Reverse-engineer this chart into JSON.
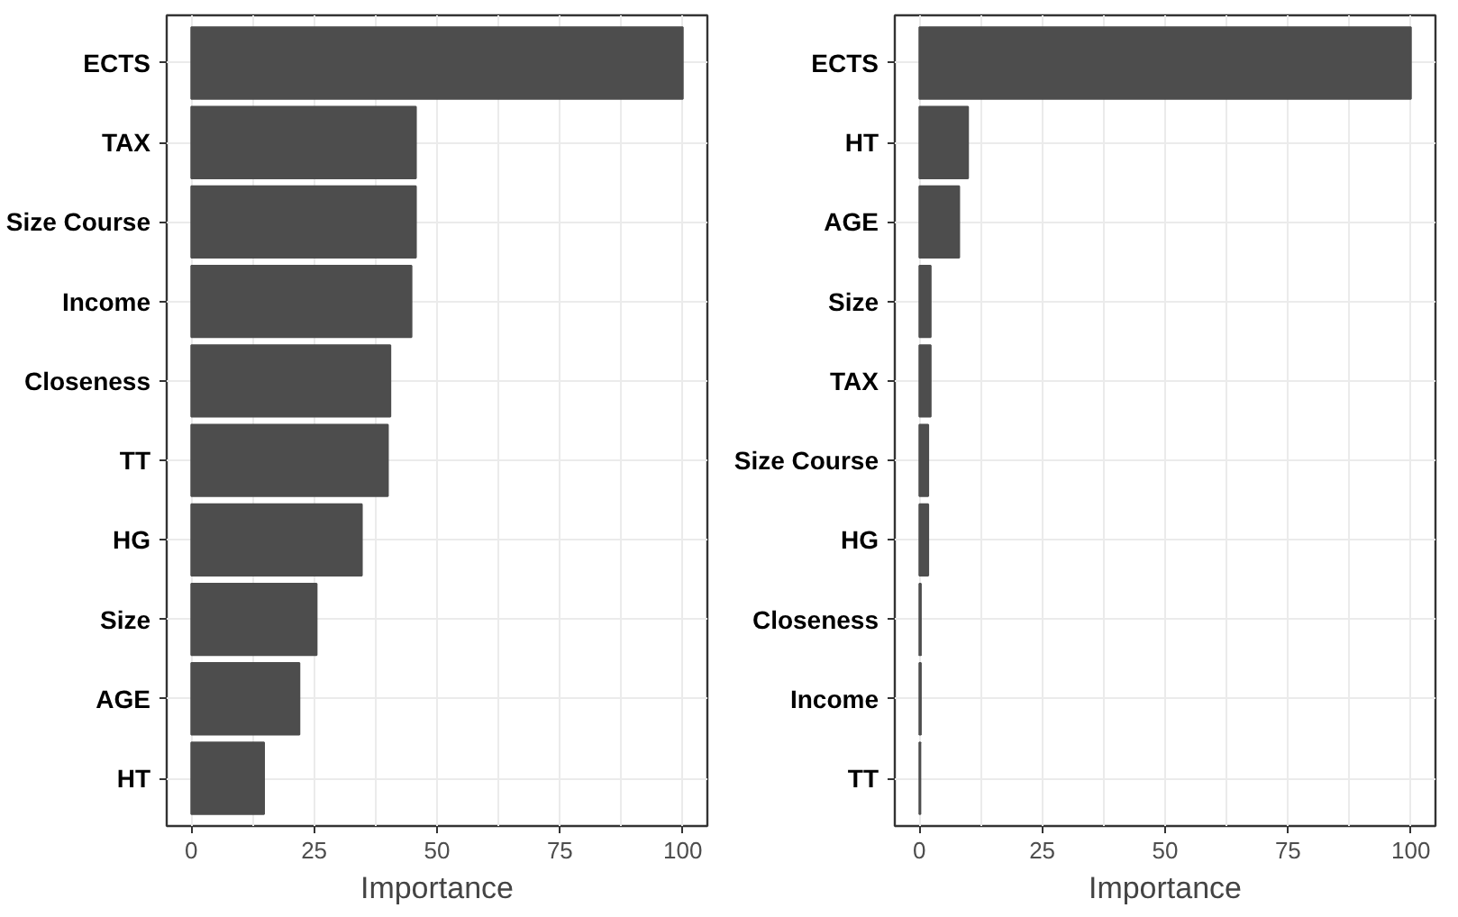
{
  "chart_data": [
    {
      "type": "bar",
      "orientation": "horizontal",
      "categories": [
        "ECTS",
        "TAX",
        "Size Course",
        "Income",
        "Closeness",
        "TT",
        "HG",
        "Size",
        "AGE",
        "HT"
      ],
      "values": [
        100,
        45.7,
        45.7,
        44.8,
        40.5,
        40,
        34.7,
        25.5,
        22,
        14.8
      ],
      "color": "#4d4d4d",
      "xlim": [
        -5,
        105
      ],
      "xticks": [
        0,
        25,
        50,
        75,
        100
      ],
      "xlabel": "Importance",
      "grid": true
    },
    {
      "type": "bar",
      "orientation": "horizontal",
      "categories": [
        "ECTS",
        "HT",
        "AGE",
        "Size",
        "TAX",
        "Size Course",
        "HG",
        "Closeness",
        "Income",
        "TT"
      ],
      "values": [
        100,
        9.9,
        8.1,
        2.3,
        2.3,
        1.8,
        1.8,
        0.3,
        0.3,
        0.2
      ],
      "color": "#4d4d4d",
      "xlim": [
        -5,
        105
      ],
      "xticks": [
        0,
        25,
        50,
        75,
        100
      ],
      "xlabel": "Importance",
      "grid": true
    }
  ]
}
